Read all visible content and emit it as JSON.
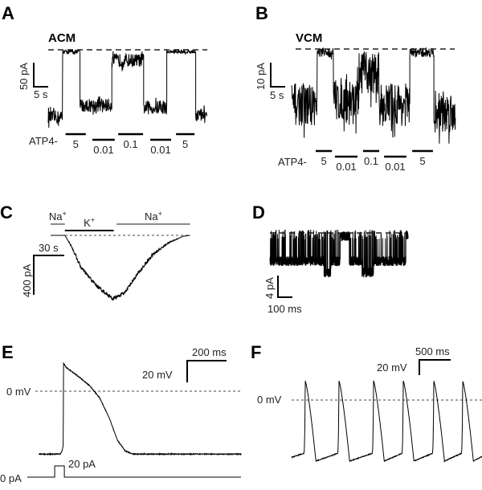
{
  "chart_data": [
    {
      "panel": "A",
      "type": "line",
      "title": "ACM",
      "scale_bar": {
        "y": "50 pA",
        "x": "5 s"
      },
      "stimulus_label": "ATP4-",
      "stimuli": [
        {
          "label": "5",
          "start": 6,
          "end": 13
        },
        {
          "label": "0.01",
          "start": 15.3,
          "end": 23
        },
        {
          "label": "0.1",
          "start": 24.2,
          "end": 32.8
        },
        {
          "label": "0.01",
          "start": 35.3,
          "end": 42.5
        },
        {
          "label": "5",
          "start": 44.2,
          "end": 50.6
        }
      ],
      "segments_s_pA": [
        {
          "duration": 5,
          "level": -140
        },
        {
          "duration": 6,
          "level": -4
        },
        {
          "duration": 11,
          "level": -115
        },
        {
          "duration": 11,
          "level": -22
        },
        {
          "duration": 8,
          "level": -120
        },
        {
          "duration": 10,
          "level": -4
        },
        {
          "duration": 4,
          "level": -135
        }
      ]
    },
    {
      "panel": "B",
      "type": "line",
      "title": "VCM",
      "scale_bar": {
        "y": "10 pA",
        "x": "5 s"
      },
      "stimulus_label": "ATP4-",
      "stimuli": [
        {
          "label": "5",
          "start": 7.9,
          "end": 13.2
        },
        {
          "label": "0.01",
          "start": 14.2,
          "end": 21.6
        },
        {
          "label": "0.1",
          "start": 23.4,
          "end": 28.7
        },
        {
          "label": "0.01",
          "start": 30.3,
          "end": 37.6
        },
        {
          "label": "5",
          "start": 39.5,
          "end": 46.3
        }
      ],
      "segments_s_pA": [
        {
          "duration": 8.4,
          "level": -23
        },
        {
          "duration": 5.3,
          "level": -1.5
        },
        {
          "duration": 8.4,
          "level": -21
        },
        {
          "duration": 6.6,
          "level": -10
        },
        {
          "duration": 10,
          "level": -23
        },
        {
          "duration": 7.9,
          "level": -1.5
        },
        {
          "duration": 7.1,
          "level": -26
        }
      ]
    },
    {
      "panel": "C",
      "type": "line",
      "scale_bar": {
        "y": "400 pA",
        "x": "30 s"
      },
      "solutions": [
        {
          "label": "Na",
          "sup": "+",
          "start": 0,
          "end": 14,
          "color": "#8a8a8a"
        },
        {
          "label": "K",
          "sup": "+",
          "start": 14,
          "end": 62,
          "color": "#000000"
        },
        {
          "label": "Na",
          "sup": "+",
          "start": 65,
          "end": 137,
          "color": "#8a8a8a"
        }
      ],
      "points_s_pA": [
        [
          0,
          0
        ],
        [
          14,
          0
        ],
        [
          20,
          -100
        ],
        [
          30,
          -330
        ],
        [
          45,
          -510
        ],
        [
          61,
          -645
        ],
        [
          72,
          -590
        ],
        [
          85,
          -400
        ],
        [
          100,
          -200
        ],
        [
          115,
          -80
        ],
        [
          130,
          -10
        ],
        [
          137,
          0
        ]
      ]
    },
    {
      "panel": "D",
      "type": "line",
      "scale_bar": {
        "y": "4 pA",
        "x": "100 ms"
      },
      "segments_ms_pA": [
        {
          "start": 0,
          "end": 470,
          "level": -5.2
        },
        {
          "start": 470,
          "end": 530,
          "level": -7.3
        },
        {
          "start": 530,
          "end": 610,
          "level": -5.2
        },
        {
          "start": 610,
          "end": 690,
          "level": -0.6
        },
        {
          "start": 690,
          "end": 800,
          "level": -5.2
        },
        {
          "start": 800,
          "end": 900,
          "level": -7.3
        },
        {
          "start": 900,
          "end": 1180,
          "level": -5.2
        },
        {
          "start": 1180,
          "end": 1200,
          "level": -0.3
        }
      ]
    },
    {
      "panel": "E",
      "type": "line",
      "scale_bar": {
        "y": "20 mV",
        "x": "200 ms"
      },
      "zero_label": "0 mV",
      "points_ms_mV": [
        [
          0,
          -58
        ],
        [
          110,
          -58
        ],
        [
          120,
          -55
        ],
        [
          125,
          -50
        ],
        [
          127,
          26
        ],
        [
          140,
          22
        ],
        [
          200,
          14
        ],
        [
          260,
          5
        ],
        [
          310,
          -6
        ],
        [
          360,
          -25
        ],
        [
          400,
          -45
        ],
        [
          440,
          -55
        ],
        [
          480,
          -58
        ],
        [
          1030,
          -58
        ]
      ],
      "stimulus": {
        "zero_label": "0 pA",
        "amplitude_label": "20 pA",
        "amplitude": 20,
        "start_ms": 82,
        "end_ms": 131
      }
    },
    {
      "panel": "F",
      "type": "line",
      "scale_bar": {
        "y": "20 mV",
        "x": "500 ms"
      },
      "zero_label": "0 mV",
      "peak_times_ms": [
        218,
        756,
        1308,
        1782,
        2269,
        2731
      ],
      "peak_mV": 25,
      "trough_mV": -80,
      "diastolic_mV": -70,
      "duration_ms": 3040
    }
  ]
}
